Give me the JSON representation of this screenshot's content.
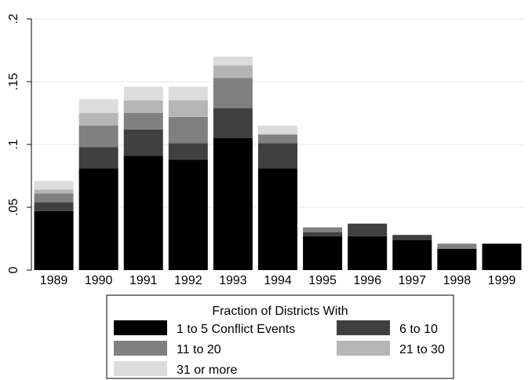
{
  "chart_data": {
    "type": "bar",
    "stacked": true,
    "categories": [
      "1989",
      "1990",
      "1991",
      "1992",
      "1993",
      "1994",
      "1995",
      "1996",
      "1997",
      "1998",
      "1999"
    ],
    "series": [
      {
        "name": "1 to 5 Conflict Events",
        "color": "#000000",
        "values": [
          0.047,
          0.081,
          0.091,
          0.088,
          0.105,
          0.081,
          0.027,
          0.027,
          0.024,
          0.017,
          0.021
        ]
      },
      {
        "name": "6 to 10",
        "color": "#404040",
        "values": [
          0.007,
          0.017,
          0.021,
          0.013,
          0.024,
          0.02,
          0.003,
          0.01,
          0.004,
          0.0,
          0.0
        ]
      },
      {
        "name": "11 to 20",
        "color": "#808080",
        "values": [
          0.007,
          0.017,
          0.013,
          0.021,
          0.024,
          0.007,
          0.004,
          0.0,
          0.0,
          0.004,
          0.0
        ]
      },
      {
        "name": "21 to 30",
        "color": "#b5b5b5",
        "values": [
          0.003,
          0.01,
          0.01,
          0.013,
          0.01,
          0.0,
          0.0,
          0.0,
          0.0,
          0.0,
          0.0
        ]
      },
      {
        "name": "31 or more",
        "color": "#dcdcdc",
        "values": [
          0.007,
          0.011,
          0.011,
          0.011,
          0.007,
          0.007,
          0.0,
          0.0,
          0.0,
          0.0,
          0.0
        ]
      }
    ],
    "yticks": [
      {
        "value": 0,
        "label": "0"
      },
      {
        "value": 0.05,
        "label": ".05"
      },
      {
        "value": 0.1,
        "label": ".1"
      },
      {
        "value": 0.15,
        "label": ".15"
      },
      {
        "value": 0.2,
        "label": ".2"
      }
    ],
    "ylim": [
      0,
      0.2
    ],
    "grid": true,
    "legend": {
      "title": "Fraction of Districts With",
      "placement": "bottom",
      "columns": 2
    }
  }
}
